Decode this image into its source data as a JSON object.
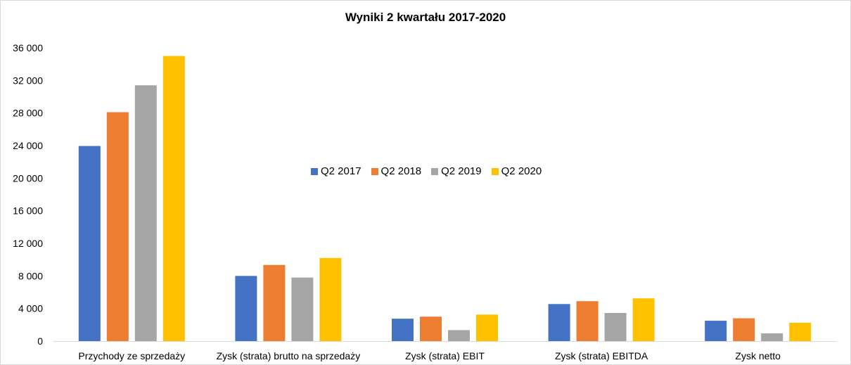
{
  "chart_data": {
    "type": "bar",
    "title": "Wyniki 2 kwartału 2017-2020",
    "categories": [
      "Przychody ze sprzedaży",
      "Zysk (strata) brutto na sprzedaży",
      "Zysk (strata) EBIT",
      "Zysk (strata) EBITDA",
      "Zysk netto"
    ],
    "series": [
      {
        "name": "Q2 2017",
        "color": "#4472C4",
        "values": [
          23950,
          8000,
          2750,
          4550,
          2500
        ]
      },
      {
        "name": "Q2 2018",
        "color": "#ED7D31",
        "values": [
          28100,
          9350,
          3000,
          4900,
          2800
        ]
      },
      {
        "name": "Q2 2019",
        "color": "#A5A5A5",
        "values": [
          31400,
          7800,
          1350,
          3450,
          950
        ]
      },
      {
        "name": "Q2 2020",
        "color": "#FFC000",
        "values": [
          35000,
          10200,
          3250,
          5250,
          2250
        ]
      }
    ],
    "ylim": [
      0,
      36000
    ],
    "yticks": [
      0,
      4000,
      8000,
      12000,
      16000,
      20000,
      24000,
      28000,
      32000,
      36000
    ],
    "ytick_labels": [
      "0",
      "4 000",
      "8 000",
      "12 000",
      "16 000",
      "20 000",
      "24 000",
      "28 000",
      "32 000",
      "36 000"
    ],
    "grid": false,
    "legend_position": "center"
  }
}
